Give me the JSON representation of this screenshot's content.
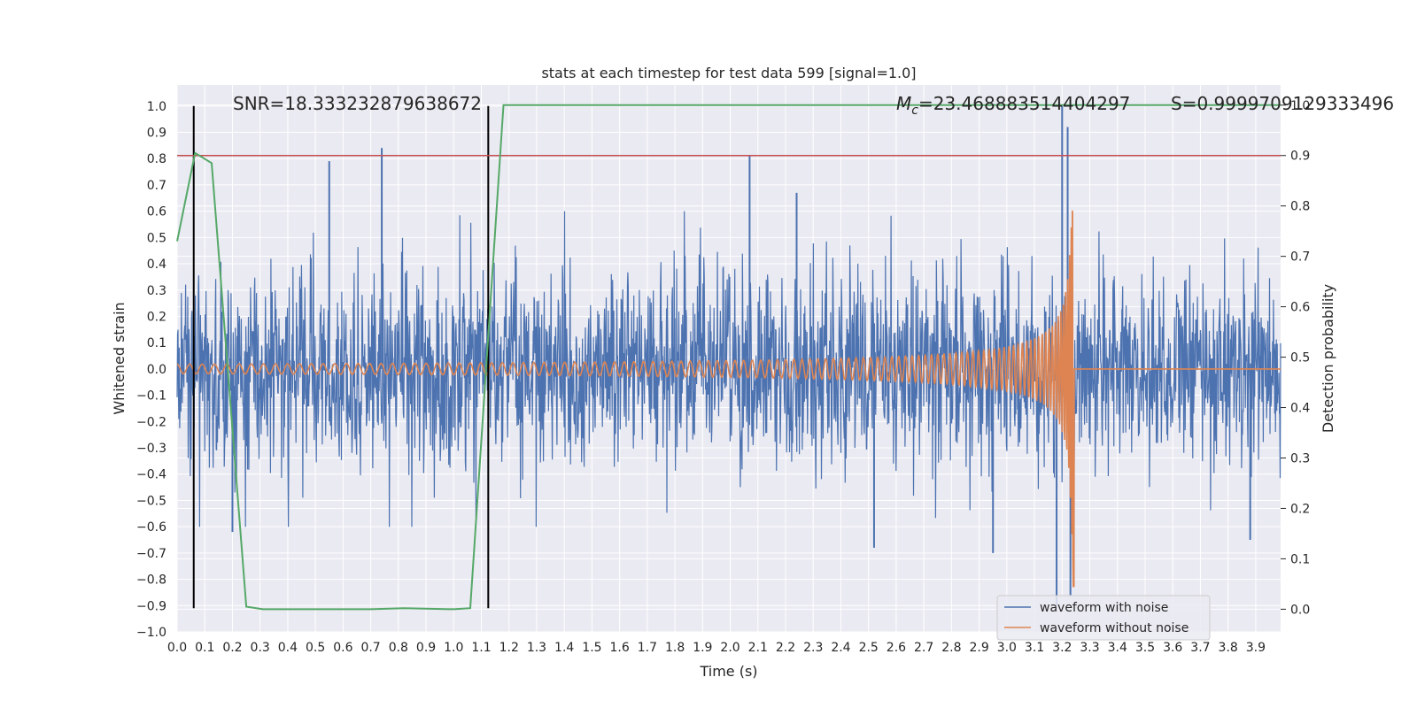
{
  "chart_data": {
    "type": "line",
    "title": "stats at each timestep for test data 599 [signal=1.0]",
    "xlabel": "Time (s)",
    "ylabel": "Whitened strain",
    "ylabel_right": "Detection probability",
    "xlim": [
      0.0,
      3.99
    ],
    "ylim": [
      -1.0,
      1.08
    ],
    "ylim_right": [
      -0.045,
      1.04
    ],
    "x_ticks": [
      "0.0",
      "0.1",
      "0.2",
      "0.3",
      "0.4",
      "0.5",
      "0.6",
      "0.7",
      "0.8",
      "0.9",
      "1.0",
      "1.1",
      "1.2",
      "1.3",
      "1.4",
      "1.5",
      "1.6",
      "1.7",
      "1.8",
      "1.9",
      "2.0",
      "2.1",
      "2.2",
      "2.3",
      "2.4",
      "2.5",
      "2.6",
      "2.7",
      "2.8",
      "2.9",
      "3.0",
      "3.1",
      "3.2",
      "3.3",
      "3.4",
      "3.5",
      "3.6",
      "3.7",
      "3.8",
      "3.9"
    ],
    "y_ticks": [
      "−1.0",
      "−0.9",
      "−0.8",
      "−0.7",
      "−0.6",
      "−0.5",
      "−0.4",
      "−0.3",
      "−0.2",
      "−0.1",
      "0.0",
      "0.1",
      "0.2",
      "0.3",
      "0.4",
      "0.5",
      "0.6",
      "0.7",
      "0.8",
      "0.9",
      "1.0"
    ],
    "y_ticks_right": [
      "0.0",
      "0.1",
      "0.2",
      "0.3",
      "0.4",
      "0.5",
      "0.6",
      "0.7",
      "0.8",
      "0.9",
      "1.0"
    ],
    "annotations": {
      "snr": "SNR=18.333232879638672",
      "mc_symbol": "M",
      "mc_sub": "c",
      "mc_value": "=23.468883514404297",
      "s": "S=0.9999709129333496"
    },
    "series": [
      {
        "name": "waveform with noise",
        "color": "#4c72b0",
        "style": "noise",
        "seed": 599,
        "sigma": 0.19,
        "spikes": [
          [
            0.2,
            -0.62
          ],
          [
            0.55,
            0.79
          ],
          [
            0.74,
            0.84
          ],
          [
            2.07,
            0.81
          ],
          [
            2.24,
            0.67
          ],
          [
            2.52,
            -0.68
          ],
          [
            2.95,
            -0.7
          ],
          [
            3.18,
            -0.9
          ],
          [
            3.2,
            1.0
          ],
          [
            3.22,
            0.92
          ],
          [
            3.23,
            -0.86
          ],
          [
            3.88,
            -0.65
          ]
        ]
      },
      {
        "name": "waveform without noise",
        "color": "#dd8452",
        "style": "chirp",
        "f0": 22,
        "tc": 3.243,
        "amp0": 0.018
      }
    ],
    "detection_probability": {
      "color": "#55a868",
      "x": [
        0.0,
        0.065,
        0.125,
        0.25,
        0.31,
        0.5,
        0.7,
        0.82,
        1.0,
        1.06,
        1.18,
        3.99
      ],
      "y": [
        0.73,
        0.905,
        0.885,
        0.005,
        0.0,
        0.0,
        0.0,
        0.002,
        0.0,
        0.002,
        1.0,
        1.0
      ]
    },
    "threshold": {
      "color": "#c44e52",
      "y_right": 0.9
    },
    "markers": {
      "color": "#000000",
      "x": [
        0.06,
        1.125
      ],
      "y_range": [
        -0.91,
        1.0
      ]
    },
    "legend_location": "lower-right",
    "grid": true
  }
}
